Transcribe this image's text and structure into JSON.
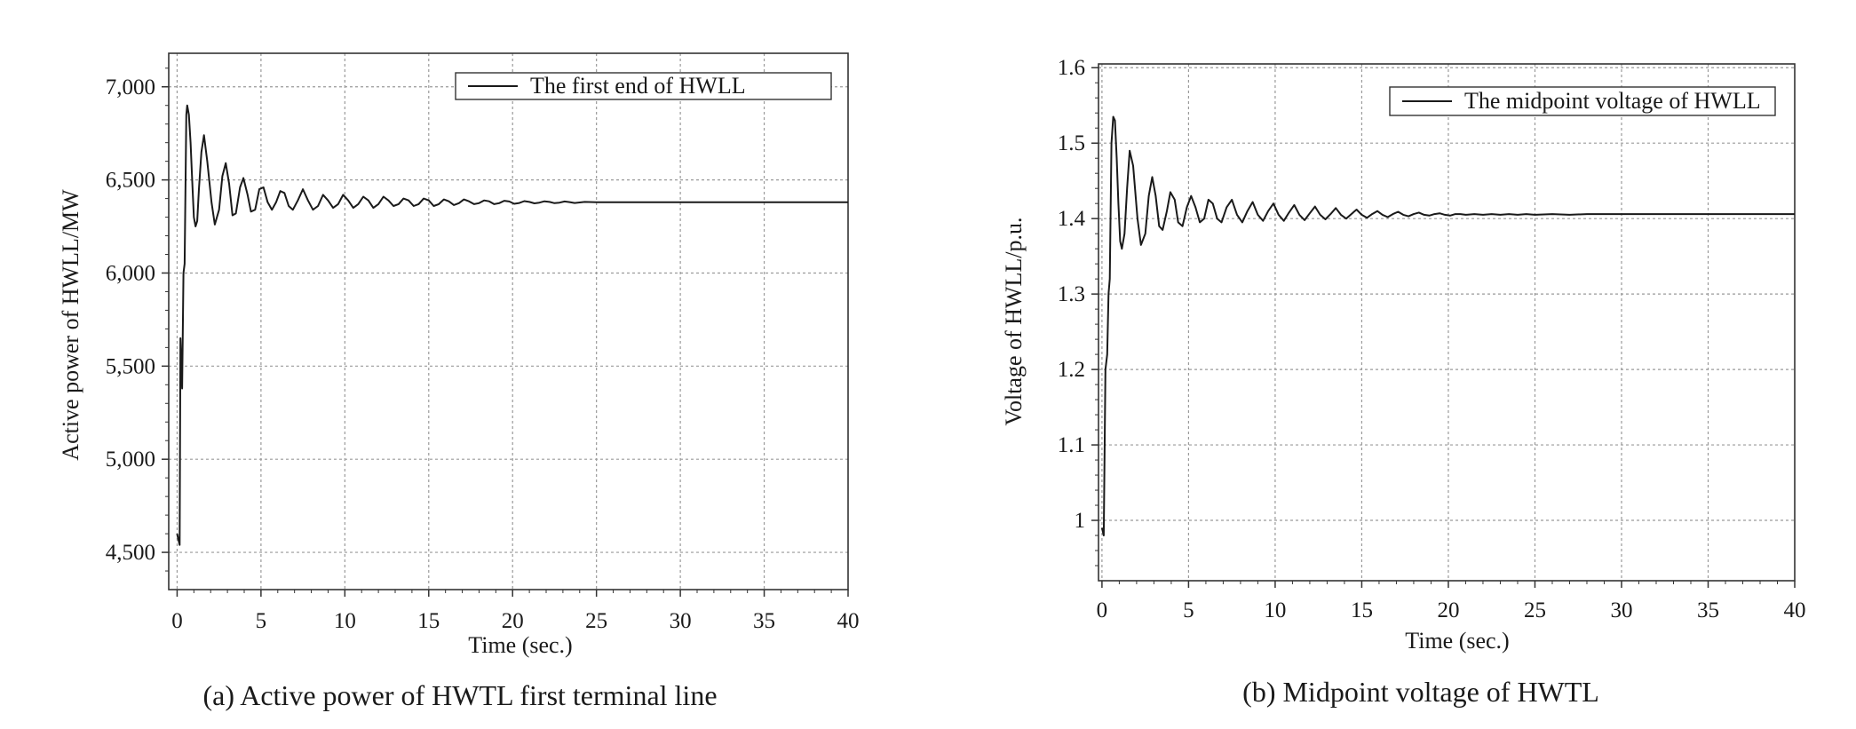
{
  "chart_data": [
    {
      "type": "line",
      "caption": "(a) Active power of HWTL first terminal line",
      "xlabel": "Time (sec.)",
      "ylabel": "Active power of HWLL/MW",
      "xlim": [
        -0.5,
        40
      ],
      "ylim": [
        4300,
        7180
      ],
      "xticks": [
        0,
        5,
        10,
        15,
        20,
        25,
        30,
        35,
        40
      ],
      "xtick_labels": [
        "0",
        "5",
        "10",
        "15",
        "20",
        "25",
        "30",
        "35",
        "40"
      ],
      "yticks": [
        4500,
        5000,
        5500,
        6000,
        6500,
        7000
      ],
      "ytick_labels": [
        "4,500",
        "5,000",
        "5,500",
        "6,000",
        "6,500",
        "7,000"
      ],
      "grid": true,
      "legend_position": "top-right",
      "series": [
        {
          "name": "The first end of HWLL",
          "x": [
            0,
            0.1,
            0.15,
            0.2,
            0.3,
            0.38,
            0.45,
            0.55,
            0.6,
            0.7,
            0.8,
            0.9,
            1.0,
            1.1,
            1.2,
            1.3,
            1.45,
            1.6,
            1.8,
            2.05,
            2.25,
            2.5,
            2.7,
            2.9,
            3.1,
            3.3,
            3.5,
            3.75,
            3.95,
            4.2,
            4.4,
            4.65,
            4.9,
            5.15,
            5.4,
            5.65,
            5.9,
            6.15,
            6.4,
            6.65,
            6.9,
            7.2,
            7.5,
            7.8,
            8.1,
            8.4,
            8.7,
            9.0,
            9.3,
            9.6,
            9.9,
            10.2,
            10.5,
            10.8,
            11.1,
            11.4,
            11.7,
            12.0,
            12.3,
            12.6,
            12.9,
            13.2,
            13.5,
            13.8,
            14.1,
            14.4,
            14.7,
            15.0,
            15.3,
            15.6,
            15.9,
            16.2,
            16.5,
            16.8,
            17.1,
            17.4,
            17.7,
            18.0,
            18.3,
            18.6,
            18.9,
            19.2,
            19.5,
            19.8,
            20.1,
            20.4,
            20.7,
            21.0,
            21.3,
            21.6,
            21.9,
            22.2,
            22.5,
            22.8,
            23.1,
            23.4,
            23.7,
            24.0,
            24.3,
            25,
            30,
            35,
            40
          ],
          "values": [
            4600,
            4560,
            4540,
            5650,
            5380,
            6000,
            6050,
            6850,
            6900,
            6850,
            6700,
            6500,
            6300,
            6250,
            6280,
            6450,
            6650,
            6740,
            6600,
            6380,
            6260,
            6340,
            6520,
            6590,
            6480,
            6310,
            6320,
            6460,
            6510,
            6420,
            6330,
            6340,
            6450,
            6460,
            6380,
            6340,
            6380,
            6440,
            6430,
            6360,
            6340,
            6390,
            6450,
            6390,
            6340,
            6360,
            6420,
            6390,
            6350,
            6370,
            6420,
            6390,
            6350,
            6370,
            6410,
            6390,
            6350,
            6370,
            6410,
            6390,
            6360,
            6370,
            6400,
            6390,
            6360,
            6370,
            6400,
            6390,
            6360,
            6370,
            6395,
            6385,
            6365,
            6375,
            6395,
            6385,
            6370,
            6375,
            6390,
            6385,
            6370,
            6375,
            6388,
            6384,
            6372,
            6376,
            6386,
            6382,
            6374,
            6378,
            6385,
            6382,
            6375,
            6378,
            6384,
            6381,
            6376,
            6379,
            6382,
            6380,
            6380,
            6380,
            6380
          ]
        }
      ]
    },
    {
      "type": "line",
      "caption": "(b) Midpoint voltage of HWTL",
      "xlabel": "Time (sec.)",
      "ylabel": "Voltage of HWLL/p.u.",
      "xlim": [
        -0.2,
        40
      ],
      "ylim": [
        0.92,
        1.605
      ],
      "xticks": [
        0,
        5,
        10,
        15,
        20,
        25,
        30,
        35,
        40
      ],
      "xtick_labels": [
        "0",
        "5",
        "10",
        "15",
        "20",
        "25",
        "30",
        "35",
        "40"
      ],
      "yticks": [
        1,
        1.1,
        1.2,
        1.3,
        1.4,
        1.5,
        1.6
      ],
      "ytick_labels": [
        "1",
        "1.1",
        "1.2",
        "1.3",
        "1.4",
        "1.5",
        "1.6"
      ],
      "grid": true,
      "legend_position": "top-right",
      "series": [
        {
          "name": "The midpoint voltage of HWLL",
          "x": [
            0,
            0.1,
            0.2,
            0.3,
            0.38,
            0.45,
            0.55,
            0.65,
            0.75,
            0.85,
            0.95,
            1.05,
            1.15,
            1.3,
            1.45,
            1.6,
            1.8,
            2.05,
            2.25,
            2.5,
            2.7,
            2.9,
            3.1,
            3.3,
            3.5,
            3.75,
            3.95,
            4.2,
            4.4,
            4.65,
            4.9,
            5.15,
            5.4,
            5.65,
            5.9,
            6.15,
            6.4,
            6.65,
            6.9,
            7.2,
            7.5,
            7.8,
            8.1,
            8.4,
            8.7,
            9.0,
            9.3,
            9.6,
            9.9,
            10.2,
            10.5,
            10.8,
            11.1,
            11.4,
            11.7,
            12.0,
            12.3,
            12.6,
            12.9,
            13.2,
            13.5,
            13.8,
            14.1,
            14.4,
            14.7,
            15.0,
            15.3,
            15.6,
            15.9,
            16.2,
            16.5,
            16.8,
            17.1,
            17.4,
            17.7,
            18.0,
            18.3,
            18.6,
            18.9,
            19.2,
            19.5,
            19.8,
            20.1,
            20.4,
            20.7,
            21.0,
            21.5,
            22.0,
            22.5,
            23.0,
            23.5,
            24.0,
            24.5,
            25.0,
            26.0,
            27.0,
            28.0,
            29.0,
            30,
            35,
            40
          ],
          "values": [
            0.99,
            0.98,
            1.2,
            1.22,
            1.3,
            1.32,
            1.5,
            1.535,
            1.53,
            1.48,
            1.42,
            1.37,
            1.36,
            1.38,
            1.44,
            1.49,
            1.47,
            1.4,
            1.365,
            1.38,
            1.43,
            1.455,
            1.43,
            1.39,
            1.385,
            1.41,
            1.435,
            1.425,
            1.395,
            1.39,
            1.415,
            1.43,
            1.415,
            1.395,
            1.4,
            1.425,
            1.42,
            1.4,
            1.395,
            1.415,
            1.425,
            1.405,
            1.395,
            1.41,
            1.422,
            1.405,
            1.397,
            1.41,
            1.42,
            1.405,
            1.397,
            1.408,
            1.418,
            1.405,
            1.398,
            1.407,
            1.416,
            1.405,
            1.399,
            1.406,
            1.414,
            1.405,
            1.4,
            1.406,
            1.412,
            1.405,
            1.401,
            1.406,
            1.41,
            1.405,
            1.402,
            1.406,
            1.409,
            1.405,
            1.403,
            1.406,
            1.408,
            1.405,
            1.404,
            1.406,
            1.407,
            1.405,
            1.404,
            1.406,
            1.406,
            1.405,
            1.406,
            1.405,
            1.406,
            1.405,
            1.406,
            1.405,
            1.406,
            1.405,
            1.406,
            1.405,
            1.406,
            1.406,
            1.406,
            1.406,
            1.406
          ]
        }
      ]
    }
  ]
}
